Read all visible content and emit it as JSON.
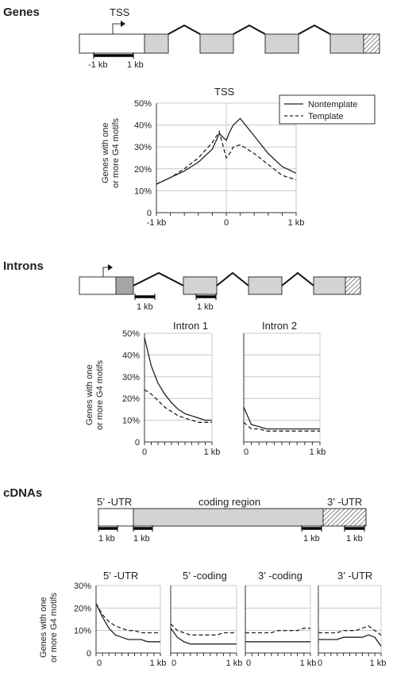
{
  "sections": {
    "genes": "Genes",
    "introns": "Introns",
    "cdnas": "cDNAs"
  },
  "genes_diagram": {
    "tss_label": "TSS",
    "scale_left": "-1 kb",
    "scale_right": "1 kb"
  },
  "introns_diagram": {
    "scale1": "1 kb",
    "scale2": "1 kb"
  },
  "cdna_diagram": {
    "utr5": "5’ -UTR",
    "coding": "coding region",
    "utr3": "3’ -UTR",
    "scale1": "1 kb",
    "scale2": "1 kb",
    "scale3": "1 kb",
    "scale4": "1 kb"
  },
  "ylabel_line1": "Genes with one",
  "ylabel_line2": "or more G4 motifs",
  "legend": {
    "nontemplate": "Nontemplate",
    "template": "Template"
  },
  "colors": {
    "grey_exon": "#d3d3d3",
    "dark_exon": "#a6a6a6",
    "line": "#222222"
  },
  "chart_data": [
    {
      "type": "line",
      "title": "TSS",
      "x_ticks": [
        "-1 kb",
        "0",
        "1 kb"
      ],
      "xlim": [
        -1,
        1
      ],
      "y_ticks": [
        "0",
        "10%",
        "20%",
        "30%",
        "40%",
        "50%"
      ],
      "ylim": [
        0,
        50
      ],
      "grid": true,
      "legend_position": "top-right",
      "series": [
        {
          "name": "Nontemplate",
          "style": "solid",
          "x": [
            -1,
            -0.8,
            -0.6,
            -0.4,
            -0.2,
            -0.1,
            0,
            0.05,
            0.1,
            0.2,
            0.4,
            0.6,
            0.8,
            1
          ],
          "y": [
            13,
            16,
            19,
            23,
            29,
            36,
            33,
            37,
            40,
            43,
            35,
            27,
            21,
            18
          ]
        },
        {
          "name": "Template",
          "style": "dashed",
          "x": [
            -1,
            -0.8,
            -0.6,
            -0.4,
            -0.2,
            -0.1,
            0,
            0.05,
            0.1,
            0.2,
            0.4,
            0.6,
            0.8,
            1
          ],
          "y": [
            13,
            16,
            20,
            25,
            32,
            37,
            25,
            27,
            30,
            31,
            27,
            22,
            17,
            15
          ]
        }
      ]
    },
    {
      "type": "line",
      "title": "Intron 1",
      "x_ticks": [
        "0",
        "1 kb"
      ],
      "xlim": [
        0,
        1
      ],
      "y_ticks": [
        "0",
        "10%",
        "20%",
        "30%",
        "40%",
        "50%"
      ],
      "ylim": [
        0,
        50
      ],
      "grid": true,
      "series": [
        {
          "name": "Nontemplate",
          "style": "solid",
          "x": [
            0,
            0.1,
            0.2,
            0.3,
            0.4,
            0.5,
            0.6,
            0.7,
            0.8,
            0.9,
            1
          ],
          "y": [
            48,
            35,
            27,
            22,
            18,
            15,
            13,
            12,
            11,
            10,
            10
          ]
        },
        {
          "name": "Template",
          "style": "dashed",
          "x": [
            0,
            0.1,
            0.2,
            0.3,
            0.4,
            0.5,
            0.6,
            0.7,
            0.8,
            0.9,
            1
          ],
          "y": [
            24,
            22,
            19,
            16,
            14,
            12,
            11,
            10,
            9,
            9,
            9
          ]
        }
      ]
    },
    {
      "type": "line",
      "title": "Intron 2",
      "x_ticks": [
        "0",
        "1 kb"
      ],
      "xlim": [
        0,
        1
      ],
      "ylim": [
        0,
        50
      ],
      "grid": true,
      "series": [
        {
          "name": "Nontemplate",
          "style": "solid",
          "x": [
            0,
            0.1,
            0.2,
            0.3,
            0.4,
            0.5,
            0.6,
            0.7,
            0.8,
            0.9,
            1
          ],
          "y": [
            16,
            8,
            7,
            6,
            6,
            6,
            6,
            6,
            6,
            6,
            6
          ]
        },
        {
          "name": "Template",
          "style": "dashed",
          "x": [
            0,
            0.1,
            0.2,
            0.3,
            0.4,
            0.5,
            0.6,
            0.7,
            0.8,
            0.9,
            1
          ],
          "y": [
            9,
            6,
            6,
            5,
            5,
            5,
            5,
            5,
            5,
            5,
            5
          ]
        }
      ]
    },
    {
      "type": "line",
      "title": "5’ -UTR",
      "x_ticks": [
        "0",
        "1 kb"
      ],
      "xlim": [
        0,
        1
      ],
      "y_ticks": [
        "0",
        "10%",
        "20%",
        "30%"
      ],
      "ylim": [
        0,
        30
      ],
      "grid": true,
      "series": [
        {
          "name": "Nontemplate",
          "style": "solid",
          "x": [
            0,
            0.1,
            0.2,
            0.3,
            0.4,
            0.5,
            0.6,
            0.7,
            0.8,
            0.9,
            1
          ],
          "y": [
            22,
            16,
            11,
            8,
            7,
            6,
            6,
            6,
            5,
            5,
            5
          ]
        },
        {
          "name": "Template",
          "style": "dashed",
          "x": [
            0,
            0.1,
            0.2,
            0.3,
            0.4,
            0.5,
            0.6,
            0.7,
            0.8,
            0.9,
            1
          ],
          "y": [
            22,
            17,
            14,
            12,
            11,
            10,
            10,
            9,
            9,
            9,
            9
          ]
        }
      ]
    },
    {
      "type": "line",
      "title": "5’ -coding",
      "x_ticks": [
        "0",
        "1 kb"
      ],
      "xlim": [
        0,
        1
      ],
      "ylim": [
        0,
        30
      ],
      "grid": true,
      "series": [
        {
          "name": "Nontemplate",
          "style": "solid",
          "x": [
            0,
            0.1,
            0.2,
            0.3,
            0.4,
            0.5,
            0.6,
            0.7,
            0.8,
            0.9,
            1
          ],
          "y": [
            11,
            7,
            5,
            4,
            4,
            4,
            4,
            4,
            4,
            4,
            4
          ]
        },
        {
          "name": "Template",
          "style": "dashed",
          "x": [
            0,
            0.1,
            0.2,
            0.3,
            0.4,
            0.5,
            0.6,
            0.7,
            0.8,
            0.9,
            1
          ],
          "y": [
            13,
            10,
            9,
            8,
            8,
            8,
            8,
            8,
            9,
            9,
            9
          ]
        }
      ]
    },
    {
      "type": "line",
      "title": "3’ -coding",
      "x_ticks": [
        "0",
        "1 kb"
      ],
      "xlim": [
        0,
        1
      ],
      "ylim": [
        0,
        30
      ],
      "grid": true,
      "series": [
        {
          "name": "Nontemplate",
          "style": "solid",
          "x": [
            0,
            0.1,
            0.2,
            0.3,
            0.4,
            0.5,
            0.6,
            0.7,
            0.8,
            0.9,
            1
          ],
          "y": [
            5,
            5,
            5,
            5,
            5,
            5,
            5,
            5,
            5,
            5,
            5
          ]
        },
        {
          "name": "Template",
          "style": "dashed",
          "x": [
            0,
            0.1,
            0.2,
            0.3,
            0.4,
            0.5,
            0.6,
            0.7,
            0.8,
            0.9,
            1
          ],
          "y": [
            9,
            9,
            9,
            9,
            9,
            10,
            10,
            10,
            10,
            11,
            11
          ]
        }
      ]
    },
    {
      "type": "line",
      "title": "3’ -UTR",
      "x_ticks": [
        "0",
        "1 kb"
      ],
      "xlim": [
        0,
        1
      ],
      "ylim": [
        0,
        30
      ],
      "grid": true,
      "series": [
        {
          "name": "Nontemplate",
          "style": "solid",
          "x": [
            0,
            0.1,
            0.2,
            0.3,
            0.4,
            0.5,
            0.6,
            0.7,
            0.8,
            0.9,
            1
          ],
          "y": [
            6,
            6,
            6,
            6,
            7,
            7,
            7,
            7,
            8,
            7,
            3
          ]
        },
        {
          "name": "Template",
          "style": "dashed",
          "x": [
            0,
            0.1,
            0.2,
            0.3,
            0.4,
            0.5,
            0.6,
            0.7,
            0.8,
            0.9,
            1
          ],
          "y": [
            9,
            9,
            9,
            9,
            10,
            10,
            10,
            11,
            12,
            10,
            8
          ]
        }
      ]
    }
  ]
}
